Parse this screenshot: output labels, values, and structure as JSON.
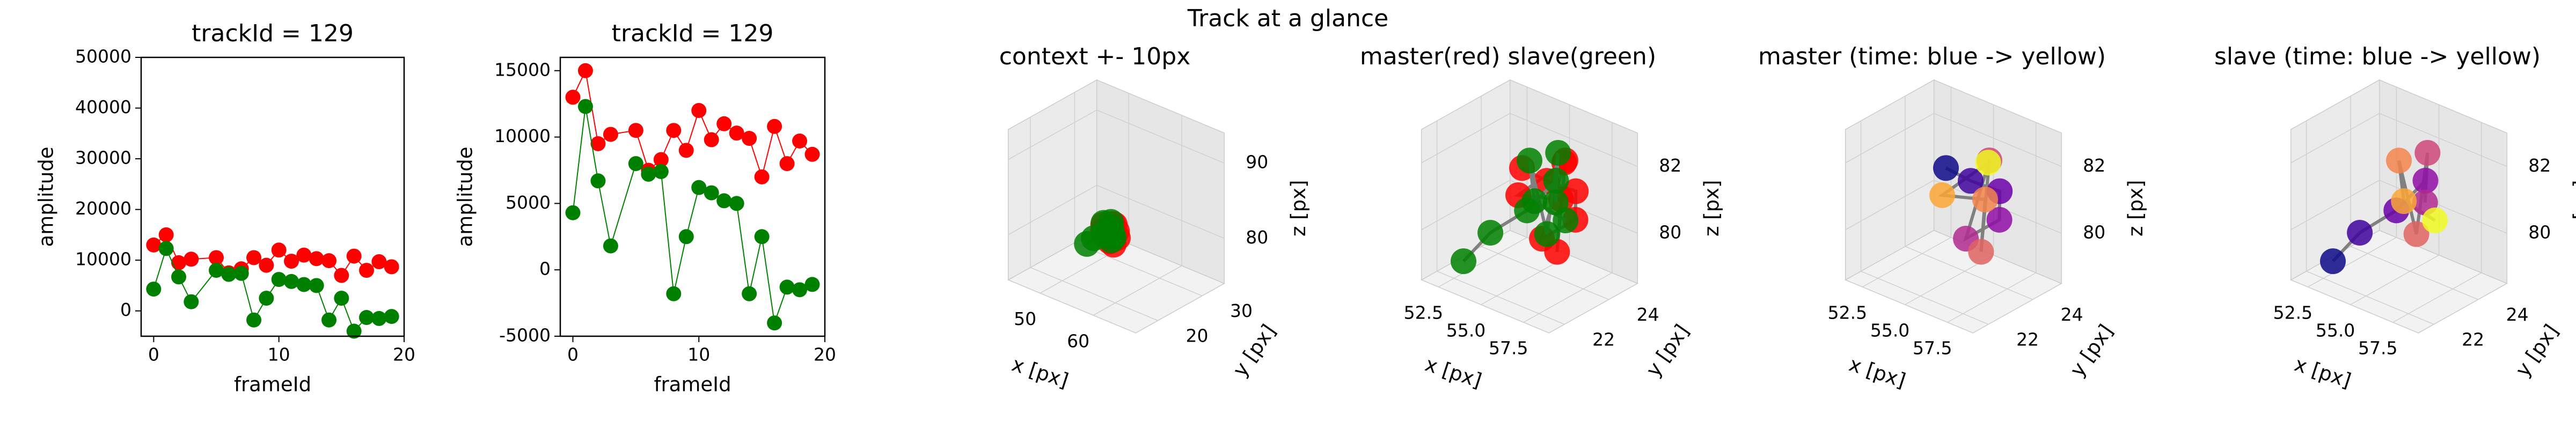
{
  "title": "Track at a glance",
  "chart_data": [
    {
      "type": "line",
      "title": "trackId = 129",
      "xlabel": "frameId",
      "ylabel": "amplitude",
      "xlim": [
        -1,
        20
      ],
      "xticks": [
        0,
        10,
        20
      ],
      "ylim": [
        -5000,
        50000
      ],
      "yticks": [
        0,
        10000,
        20000,
        30000,
        40000,
        50000
      ],
      "x": [
        0,
        1,
        2,
        3,
        5,
        6,
        7,
        8,
        9,
        10,
        11,
        12,
        13,
        14,
        15,
        16,
        17,
        18,
        19
      ],
      "series": [
        {
          "color": "#ff0000",
          "values": [
            13000,
            15000,
            9500,
            10200,
            10500,
            7500,
            8300,
            10500,
            9000,
            12000,
            9800,
            11000,
            10300,
            9900,
            7000,
            10800,
            8000,
            9700,
            8700
          ]
        },
        {
          "color": "#008000",
          "values": [
            4300,
            12300,
            6700,
            1800,
            8000,
            7200,
            7400,
            -1800,
            2500,
            6200,
            5800,
            5200,
            5000,
            -1800,
            2500,
            -4000,
            -1300,
            -1500,
            -1100
          ]
        }
      ]
    },
    {
      "type": "line",
      "title": "trackId = 129",
      "xlabel": "frameId",
      "ylabel": "amplitude",
      "xlim": [
        -1,
        20
      ],
      "xticks": [
        0,
        10,
        20
      ],
      "ylim": [
        -5000,
        16000
      ],
      "yticks": [
        -5000,
        0,
        5000,
        10000,
        15000
      ],
      "x": [
        0,
        1,
        2,
        3,
        5,
        6,
        7,
        8,
        9,
        10,
        11,
        12,
        13,
        14,
        15,
        16,
        17,
        18,
        19
      ],
      "series": [
        {
          "color": "#ff0000",
          "values": [
            13000,
            15000,
            9500,
            10200,
            10500,
            7500,
            8300,
            10500,
            9000,
            12000,
            9800,
            11000,
            10300,
            9900,
            7000,
            10800,
            8000,
            9700,
            8700
          ]
        },
        {
          "color": "#008000",
          "values": [
            4300,
            12300,
            6700,
            1800,
            8000,
            7200,
            7400,
            -1800,
            2500,
            6200,
            5800,
            5200,
            5000,
            -1800,
            2500,
            -4000,
            -1300,
            -1500,
            -1100
          ]
        }
      ]
    },
    {
      "type": "scatter3d",
      "title": "context +- 10px",
      "xlabel": "x [px]",
      "ylabel": "y [px]",
      "zlabel": "z [px]",
      "xlim": [
        44,
        68
      ],
      "xticks": [
        50,
        60
      ],
      "ylim": [
        15,
        35
      ],
      "yticks": [
        20,
        30
      ],
      "zlim": [
        74,
        94
      ],
      "zticks": [
        80,
        90
      ],
      "line_color": "#808080",
      "series": [
        {
          "color": "#ff0000",
          "x": [
            55.2,
            56.0,
            56.8,
            57.3,
            56.5,
            55.8,
            57.0,
            56.2,
            55.5,
            56.9
          ],
          "y": [
            23.0,
            23.5,
            24.2,
            23.8,
            22.9,
            24.5,
            23.2,
            24.0,
            22.6,
            23.6
          ],
          "z": [
            82.0,
            81.6,
            81.2,
            80.6,
            80.2,
            81.8,
            79.8,
            80.9,
            81.4,
            82.3
          ]
        },
        {
          "color": "#008000",
          "x": [
            52.8,
            53.6,
            55.1,
            55.9,
            56.4,
            55.5,
            56.8,
            54.6,
            55.8,
            56.2
          ],
          "y": [
            22.2,
            22.8,
            23.3,
            24.0,
            23.6,
            24.4,
            22.9,
            23.8,
            23.1,
            24.2
          ],
          "z": [
            79.0,
            79.8,
            80.6,
            81.4,
            81.0,
            82.0,
            80.4,
            81.8,
            81.1,
            80.2
          ]
        }
      ]
    },
    {
      "type": "scatter3d",
      "title": "master(red) slave(green)",
      "xlabel": "x [px]",
      "ylabel": "y [px]",
      "zlabel": "z [px]",
      "xlim": [
        51.5,
        59
      ],
      "xticks": [
        52.5,
        {
          "value": 55,
          "label": "55.0"
        },
        57.5
      ],
      "ylim": [
        21.3,
        25.3
      ],
      "yticks": [
        22,
        24
      ],
      "zlim": [
        78.5,
        83
      ],
      "zticks": [
        80,
        82
      ],
      "line_color": "#808080",
      "series": [
        {
          "color": "#ff0000",
          "x": [
            55.2,
            56.0,
            56.8,
            57.3,
            56.5,
            55.8,
            57.0,
            56.2,
            55.5,
            56.9
          ],
          "y": [
            23.0,
            23.5,
            24.2,
            23.8,
            22.9,
            24.5,
            23.2,
            24.0,
            22.6,
            23.6
          ],
          "z": [
            82.0,
            81.6,
            81.2,
            80.6,
            80.2,
            81.8,
            79.8,
            80.9,
            81.4,
            82.3
          ]
        },
        {
          "color": "#008000",
          "x": [
            52.8,
            53.6,
            55.1,
            55.9,
            56.4,
            55.5,
            56.8,
            54.6,
            55.8,
            56.2
          ],
          "y": [
            22.2,
            22.8,
            23.3,
            24.0,
            23.6,
            24.4,
            22.9,
            23.8,
            23.1,
            24.2
          ],
          "z": [
            79.0,
            79.8,
            80.6,
            81.4,
            81.0,
            82.0,
            80.4,
            81.8,
            81.1,
            80.2
          ]
        }
      ]
    },
    {
      "type": "scatter3d",
      "title": "master (time: blue -> yellow)",
      "xlabel": "x [px]",
      "ylabel": "y [px]",
      "zlabel": "z [px]",
      "xlim": [
        51.5,
        59
      ],
      "xticks": [
        52.5,
        {
          "value": 55,
          "label": "55.0"
        },
        57.5
      ],
      "ylim": [
        21.3,
        25.3
      ],
      "yticks": [
        22,
        24
      ],
      "zlim": [
        78.5,
        83
      ],
      "zticks": [
        80,
        82
      ],
      "line_color": "#808080",
      "series": [
        {
          "colors": [
            "#0d0887",
            "#41049d",
            "#6a00a8",
            "#8f0da4",
            "#b12a90",
            "#cc4778",
            "#e16462",
            "#f2844b",
            "#fca636",
            "#f0f921"
          ],
          "x": [
            55.2,
            56.0,
            56.8,
            57.3,
            56.5,
            55.8,
            57.0,
            56.2,
            55.5,
            56.9
          ],
          "y": [
            23.0,
            23.5,
            24.2,
            23.8,
            22.9,
            24.5,
            23.2,
            24.0,
            22.6,
            23.6
          ],
          "z": [
            82.0,
            81.6,
            81.2,
            80.6,
            80.2,
            81.8,
            79.8,
            80.9,
            81.4,
            82.3
          ]
        }
      ]
    },
    {
      "type": "scatter3d",
      "title": "slave (time: blue -> yellow)",
      "xlabel": "x [px]",
      "ylabel": "y [px]",
      "zlabel": "z [px]",
      "xlim": [
        51.5,
        59
      ],
      "xticks": [
        52.5,
        {
          "value": 55,
          "label": "55.0"
        },
        57.5
      ],
      "ylim": [
        21.3,
        25.3
      ],
      "yticks": [
        22,
        24
      ],
      "zlim": [
        78.5,
        83
      ],
      "zticks": [
        80,
        82
      ],
      "line_color": "#808080",
      "series": [
        {
          "colors": [
            "#0d0887",
            "#41049d",
            "#6a00a8",
            "#8f0da4",
            "#b12a90",
            "#cc4778",
            "#e16462",
            "#f2844b",
            "#fca636",
            "#f0f921"
          ],
          "x": [
            52.8,
            53.6,
            55.1,
            55.9,
            56.4,
            55.5,
            56.8,
            54.6,
            55.8,
            56.2
          ],
          "y": [
            22.2,
            22.8,
            23.3,
            24.0,
            23.6,
            24.4,
            22.9,
            23.8,
            23.1,
            24.2
          ],
          "z": [
            79.0,
            79.8,
            80.6,
            81.4,
            81.0,
            82.0,
            80.4,
            81.8,
            81.1,
            80.2
          ]
        }
      ]
    }
  ]
}
